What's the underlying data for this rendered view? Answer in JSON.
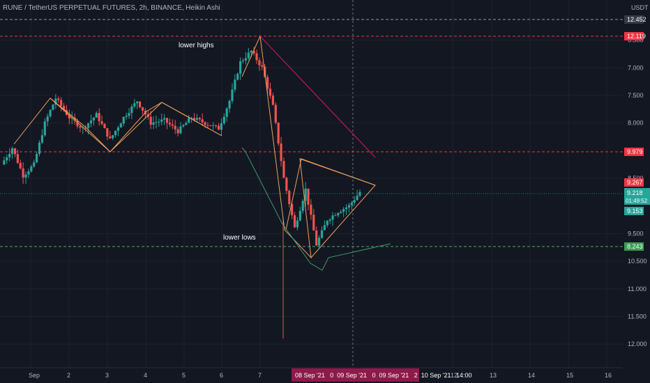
{
  "header": {
    "title": "RUNE / TetherUS PERPETUAL FUTURES, 2h, BINANCE, Heikin Ashi"
  },
  "price_axis": {
    "currency": "USDT",
    "ticks": [
      "12.000",
      "11.500",
      "11.000",
      "10.500",
      "9.500",
      "8.500",
      "8.000",
      "7.500",
      "7.000",
      "6.500"
    ]
  },
  "tags": {
    "crosshair_price": "12.452",
    "level_top": "12.119",
    "level_mid": "9.979",
    "level_bottom": "8.243",
    "bar_high": "9.267",
    "last_price": "9.218",
    "countdown": "01:49:52",
    "bar_low": "9.153"
  },
  "time_axis": {
    "labels": [
      "Sep",
      "2",
      "3",
      "4",
      "5",
      "6",
      "7",
      "12",
      "13",
      "14",
      "15",
      "16"
    ],
    "range_label": "08 Sep '21   0  09 Sep '21   0  09 Sep '21   2  10 Sep '21   14:00"
  },
  "annotations": {
    "lower_highs": "lower highs",
    "lower_lows": "lower lows"
  },
  "colors": {
    "background": "#131722",
    "up": "#26a69a",
    "down": "#ef5350",
    "level_red": "#f23645",
    "level_green": "#4caf50",
    "pattern_orange": "#f0a15a",
    "pattern_magenta": "#c2185b",
    "pattern_green": "#3d9a6a"
  },
  "chart_data": {
    "type": "candlestick",
    "style": "Heikin Ashi",
    "symbol": "RUNE / TetherUS PERPETUAL FUTURES",
    "interval": "2h",
    "exchange": "BINANCE",
    "ylim": [
      6.3,
      12.6
    ],
    "y_ticks": [
      6.5,
      7.0,
      7.5,
      8.0,
      8.5,
      9.5,
      10.5,
      11.0,
      11.5,
      12.0
    ],
    "horizontal_levels": [
      12.119,
      9.979,
      8.243
    ],
    "last_price": 9.218,
    "candle_count": 93,
    "approx_close_path": [
      [
        0,
        9.75
      ],
      [
        4,
        10.05
      ],
      [
        8,
        9.55
      ],
      [
        12,
        9.75
      ],
      [
        16,
        10.5
      ],
      [
        20,
        10.95
      ],
      [
        25,
        10.6
      ],
      [
        30,
        10.4
      ],
      [
        35,
        10.65
      ],
      [
        40,
        10.2
      ],
      [
        45,
        10.6
      ],
      [
        50,
        10.9
      ],
      [
        55,
        10.5
      ],
      [
        60,
        10.55
      ],
      [
        65,
        10.35
      ],
      [
        70,
        10.6
      ],
      [
        75,
        10.5
      ],
      [
        80,
        10.4
      ],
      [
        84,
        10.9
      ],
      [
        88,
        11.6
      ],
      [
        92,
        11.8
      ],
      [
        96,
        11.5
      ],
      [
        100,
        10.8
      ],
      [
        104,
        9.5
      ],
      [
        108,
        8.6
      ],
      [
        112,
        9.3
      ],
      [
        116,
        8.3
      ],
      [
        120,
        8.75
      ],
      [
        124,
        8.9
      ],
      [
        128,
        9.0
      ],
      [
        132,
        9.25
      ]
    ]
  }
}
